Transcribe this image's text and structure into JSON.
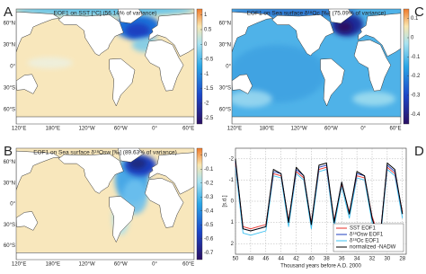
{
  "chart_data": [
    {
      "type": "map",
      "panel_label": "A",
      "title": "EOF1 on SST [°C] (56.14% of variance)",
      "colorbar_lim": [
        -2.7,
        1.2
      ],
      "colorbar_ticks": [
        1,
        0.5,
        0,
        -0.5,
        -1,
        -1.5,
        -2,
        -2.5
      ],
      "lat_labels": [
        "60°N",
        "30°N",
        "0°",
        "30°S",
        "60°S"
      ],
      "lon_labels": [
        "120°E",
        "180°E",
        "120°W",
        "60°W",
        "0°",
        "60°E"
      ]
    },
    {
      "type": "map",
      "panel_label": "C",
      "title": "EOF1 on Sea surface δ¹⁸Oc [‰] (75.09% of variance)",
      "colorbar_lim": [
        -0.45,
        0.15
      ],
      "colorbar_ticks": [
        0.1,
        0,
        -0.1,
        -0.2,
        -0.3,
        -0.4
      ],
      "lat_labels": [
        "60°N",
        "30°N",
        "0°",
        "30°S",
        "60°S"
      ],
      "lon_labels": [
        "120°E",
        "180°E",
        "120°W",
        "60°W",
        "0°",
        "60°E"
      ]
    },
    {
      "type": "map",
      "panel_label": "B",
      "title": "EOF1 on Sea surface δ¹⁸Osw [‰] (89.63% of variance)",
      "colorbar_lim": [
        -0.75,
        0.05
      ],
      "colorbar_ticks": [
        0,
        -0.1,
        -0.2,
        -0.3,
        -0.4,
        -0.5,
        -0.6,
        -0.7
      ],
      "lat_labels": [
        "60°N",
        "30°N",
        "0°",
        "30°S",
        "60°S"
      ],
      "lon_labels": [
        "120°E",
        "180°E",
        "120°W",
        "60°W",
        "0°",
        "60°E"
      ]
    },
    {
      "type": "line",
      "panel_label": "D",
      "x_label": "Thousand years before A.D. 2000",
      "y_label": "[s.d.]",
      "x": [
        50,
        49,
        48,
        47,
        46,
        45,
        44,
        43,
        42,
        41,
        40,
        39,
        38,
        37,
        36,
        35,
        34,
        33,
        32,
        31,
        30,
        29,
        28
      ],
      "xlim": [
        50,
        27.5
      ],
      "xticks": [
        50,
        48,
        46,
        44,
        42,
        40,
        38,
        36,
        34,
        32,
        30,
        28
      ],
      "ylim": [
        2.5,
        -2.5
      ],
      "yticks": [
        2,
        1,
        0,
        -1,
        -2
      ],
      "grid": true,
      "legend": "lower right",
      "series": [
        {
          "name": "SST EOF1",
          "color": "#e8302a",
          "values": [
            -1.8,
            1.2,
            1.3,
            1.2,
            1.1,
            -1.3,
            -1.2,
            0.9,
            -1.4,
            -1.1,
            1.0,
            -1.5,
            -1.6,
            0.9,
            -0.8,
            0.5,
            -1.2,
            -1.1,
            0.7,
            1.8,
            -1.6,
            -1.3,
            0.5
          ]
        },
        {
          "name": "δ¹⁸Osw EOF1",
          "color": "#1f3fbf",
          "values": [
            -1.9,
            1.3,
            1.4,
            1.3,
            1.2,
            -1.4,
            -1.3,
            1.0,
            -1.5,
            -1.2,
            1.1,
            -1.6,
            -1.7,
            1.0,
            -0.9,
            0.6,
            -1.3,
            -1.2,
            0.8,
            1.9,
            -1.7,
            -1.4,
            0.6
          ]
        },
        {
          "name": "δ¹⁸Oc EOF1",
          "color": "#3cc0f0",
          "values": [
            -1.6,
            1.5,
            1.6,
            1.5,
            1.4,
            -1.2,
            -1.1,
            1.2,
            -1.3,
            -1.0,
            1.3,
            -1.4,
            -1.5,
            1.2,
            -0.7,
            0.8,
            -1.1,
            -1.0,
            1.0,
            2.1,
            -1.5,
            -1.2,
            0.8
          ]
        },
        {
          "name": "normalized -NADW",
          "color": "#000000",
          "values": [
            -2,
            1.3,
            1.4,
            1.3,
            1.2,
            -1.5,
            -1.3,
            1,
            -1.6,
            -1.2,
            1.1,
            -1.7,
            -1.8,
            1,
            -0.9,
            0.6,
            -1.4,
            -1.2,
            0.8,
            2,
            -1.8,
            -1.5,
            0.6
          ]
        }
      ]
    }
  ]
}
